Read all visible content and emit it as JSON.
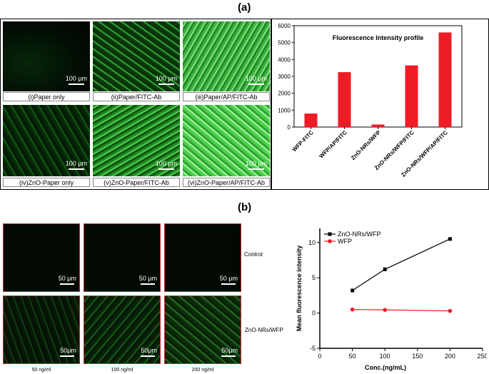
{
  "panel_a": {
    "label": "(a)",
    "images": [
      {
        "caption": "(i)Paper only",
        "scale": "100 μm"
      },
      {
        "caption": "(ii)Paper/FITC-Ab",
        "scale": "100 μm"
      },
      {
        "caption": "(iii)Paper/AP/FITC-Ab",
        "scale": "100 μm"
      },
      {
        "caption": "(iv)ZnO-Paper only",
        "scale": "100 μm"
      },
      {
        "caption": "(v)ZnO-Paper/FITC-Ab",
        "scale": "100 μm"
      },
      {
        "caption": "(vi)ZnO-Paper/AP/FITC-Ab",
        "scale": "100 μm"
      }
    ]
  },
  "panel_b": {
    "label": "(b)",
    "images": [
      {
        "scale": "50 μm"
      },
      {
        "scale": "50 μm"
      },
      {
        "scale": "50 μm"
      },
      {
        "scale": "50μm"
      },
      {
        "scale": "50μm"
      },
      {
        "scale": "50μm"
      }
    ],
    "row_labels": [
      "Control",
      "ZnO-NRs/WFP"
    ],
    "col_labels": [
      "50 ng/ml",
      "100 ng/ml",
      "200 ng/ml"
    ]
  },
  "chart_data": [
    {
      "type": "bar",
      "title": "Fluorescence Intensity profile",
      "categories": [
        "WFP-FITC",
        "WFP/AP/FITC",
        "ZnO-NRs/WFP",
        "ZnO-NRs/WFP/FITC",
        "ZnO-NRs/WFP/AP/FITC"
      ],
      "values": [
        800,
        3250,
        150,
        3650,
        5600
      ],
      "ylim": [
        0,
        6000
      ],
      "yticks": [
        "0",
        "1000",
        "2000",
        "3000",
        "4000",
        "5000",
        "6000"
      ],
      "xlabel": "",
      "ylabel": "",
      "bar_color": "#ee1c25"
    },
    {
      "type": "line",
      "xlabel": "Conc.(ng/mL)",
      "ylabel": "Mean fluorescence intensity",
      "xlim": [
        0,
        250
      ],
      "ylim": [
        -5,
        12
      ],
      "xticks": [
        "0",
        "50",
        "100",
        "150",
        "200",
        "250"
      ],
      "yticks": [
        "-5",
        "0",
        "5",
        "10"
      ],
      "legend_position": "top-left",
      "x": [
        50,
        100,
        200
      ],
      "series": [
        {
          "name": "ZnO-NRs/WFP",
          "values": [
            3.2,
            6.2,
            10.5
          ],
          "color": "#000000",
          "marker": "square"
        },
        {
          "name": "WFP",
          "values": [
            0.5,
            0.45,
            0.3
          ],
          "color": "#ee1c25",
          "marker": "circle"
        }
      ]
    }
  ]
}
